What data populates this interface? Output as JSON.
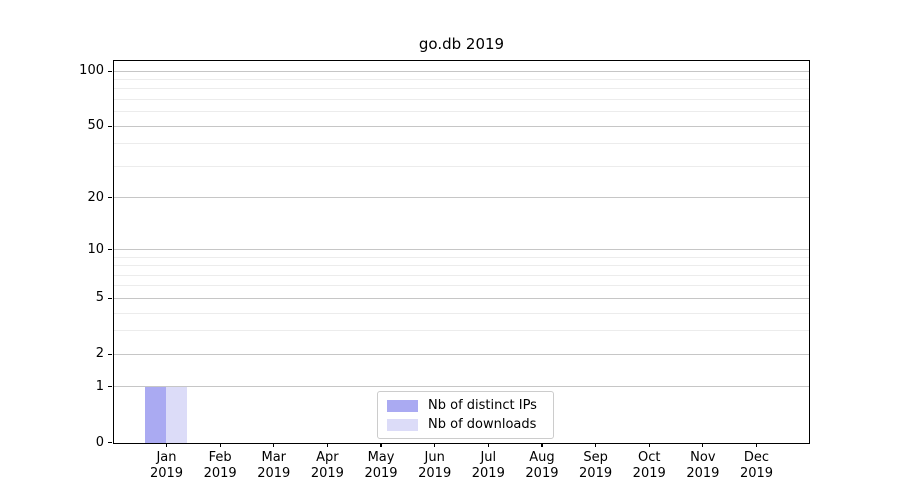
{
  "chart_data": {
    "type": "bar",
    "title": "go.db 2019",
    "categories": [
      "Jan",
      "Feb",
      "Mar",
      "Apr",
      "May",
      "Jun",
      "Jul",
      "Aug",
      "Sep",
      "Oct",
      "Nov",
      "Dec"
    ],
    "x_year_label": "2019",
    "series": [
      {
        "name": "Nb of distinct IPs",
        "color": "#aaaaf2",
        "values": [
          1,
          0,
          0,
          0,
          0,
          0,
          0,
          0,
          0,
          0,
          0,
          0
        ]
      },
      {
        "name": "Nb of downloads",
        "color": "#dcdcf8",
        "values": [
          1,
          0,
          0,
          0,
          0,
          0,
          0,
          0,
          0,
          0,
          0,
          0
        ]
      }
    ],
    "yscale": "log1p",
    "ylim": [
      0,
      113
    ],
    "yticks": [
      0,
      1,
      2,
      5,
      10,
      20,
      50,
      100
    ],
    "yticks_minor": [
      3,
      4,
      6,
      7,
      8,
      9,
      30,
      40,
      60,
      70,
      80,
      90
    ],
    "grid": {
      "orientation": "horizontal",
      "major_color": "#c6c6c6",
      "minor_color": "#ececec"
    },
    "legend": {
      "position": "inside-bottom-center"
    },
    "frame_color": "#000000",
    "background_color": "#ffffff"
  }
}
